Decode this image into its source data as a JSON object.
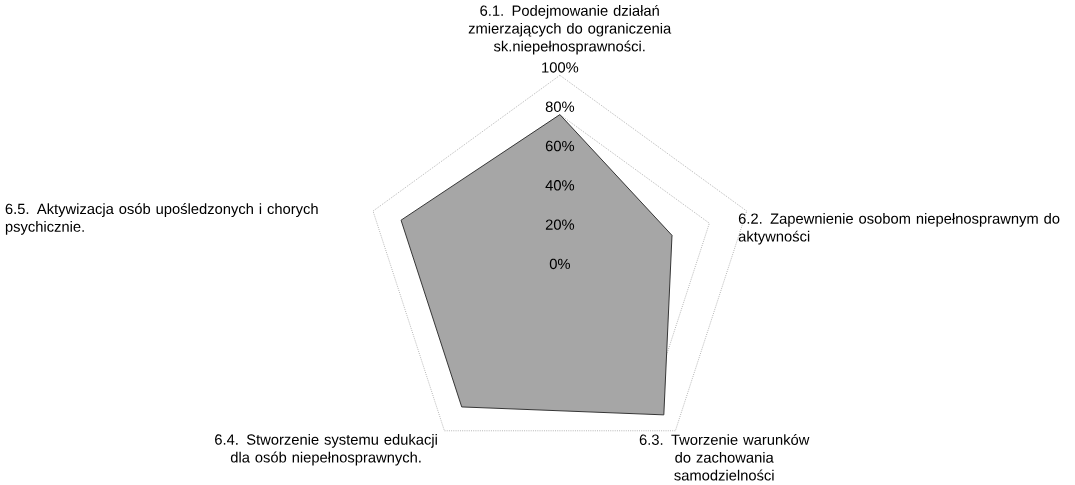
{
  "chart_data": {
    "type": "radar",
    "categories": [
      "6.1. Podejmowanie działań zmierzających do ograniczenia sk.niepełnosprawności.",
      "6.2. Zapewnienie osobom niepełnosprawnym do aktywności",
      "6.3. Tworzenie warunków do zachowania samodzielności",
      "6.4. Stworzenie systemu edukacji dla osób niepełnosprawnych.",
      "6.5. Aktywizacja osób upośledzonych i chorych psychicznie."
    ],
    "series": [
      {
        "color": "#a6a6a6",
        "values": [
          80,
          60,
          90,
          85,
          85
        ]
      }
    ],
    "ylim": [
      0,
      100
    ],
    "yticks": [
      {
        "value": 0,
        "label": "0%"
      },
      {
        "value": 20,
        "label": "20%"
      },
      {
        "value": 40,
        "label": "40%"
      },
      {
        "value": 60,
        "label": "60%"
      },
      {
        "value": 80,
        "label": "80%"
      },
      {
        "value": 100,
        "label": "100%"
      }
    ],
    "grid": true,
    "line_style": "solid"
  }
}
